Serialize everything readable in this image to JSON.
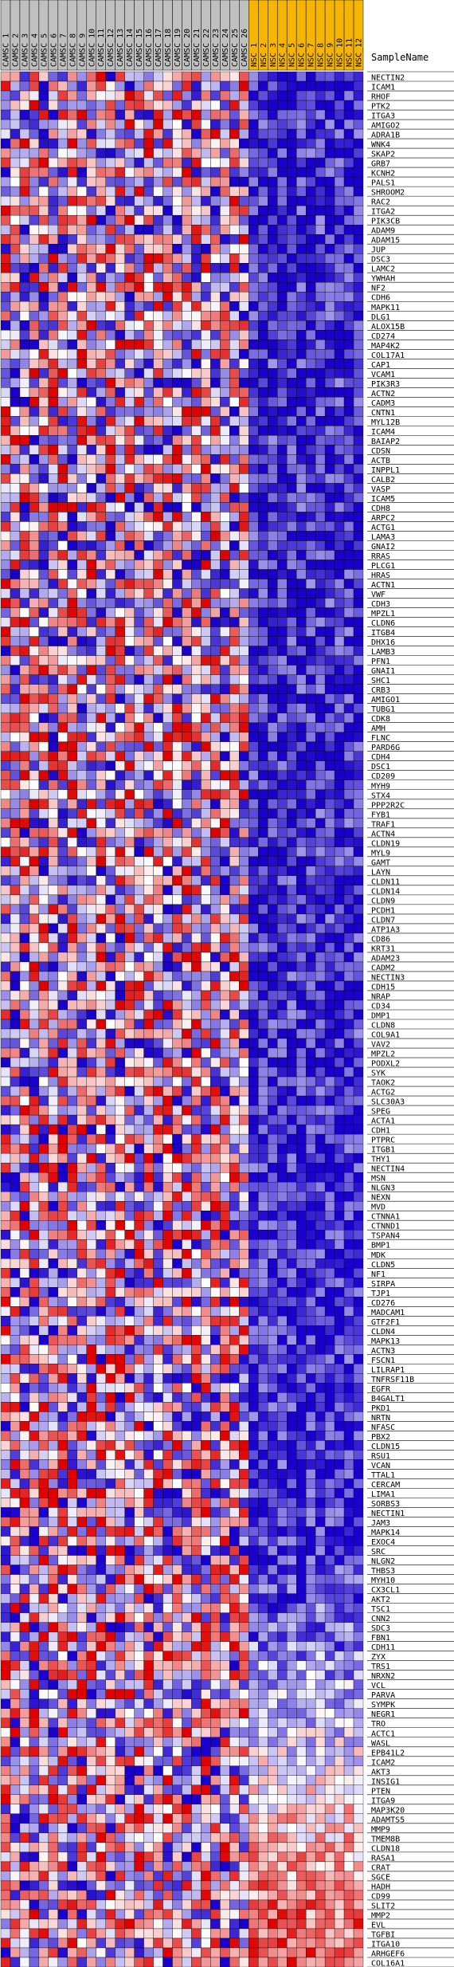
{
  "chart_data": {
    "type": "heatmap",
    "column_header_title": "SampleName",
    "columns": [
      {
        "name": "CAMSC_1",
        "group": "CAMSC"
      },
      {
        "name": "CAMSC_2",
        "group": "CAMSC"
      },
      {
        "name": "CAMSC_3",
        "group": "CAMSC"
      },
      {
        "name": "CAMSC_4",
        "group": "CAMSC"
      },
      {
        "name": "CAMSC_5",
        "group": "CAMSC"
      },
      {
        "name": "CAMSC_6",
        "group": "CAMSC"
      },
      {
        "name": "CAMSC_7",
        "group": "CAMSC"
      },
      {
        "name": "CAMSC_8",
        "group": "CAMSC"
      },
      {
        "name": "CAMSC_9",
        "group": "CAMSC"
      },
      {
        "name": "CAMSC_10",
        "group": "CAMSC"
      },
      {
        "name": "CAMSC_11",
        "group": "CAMSC"
      },
      {
        "name": "CAMSC_12",
        "group": "CAMSC"
      },
      {
        "name": "CAMSC_13",
        "group": "CAMSC"
      },
      {
        "name": "CAMSC_14",
        "group": "CAMSC"
      },
      {
        "name": "CAMSC_15",
        "group": "CAMSC"
      },
      {
        "name": "CAMSC_16",
        "group": "CAMSC"
      },
      {
        "name": "CAMSC_17",
        "group": "CAMSC"
      },
      {
        "name": "CAMSC_18",
        "group": "CAMSC"
      },
      {
        "name": "CAMSC_19",
        "group": "CAMSC"
      },
      {
        "name": "CAMSC_20",
        "group": "CAMSC"
      },
      {
        "name": "CAMSC_21",
        "group": "CAMSC"
      },
      {
        "name": "CAMSC_22",
        "group": "CAMSC"
      },
      {
        "name": "CAMSC_23",
        "group": "CAMSC"
      },
      {
        "name": "CAMSC_24",
        "group": "CAMSC"
      },
      {
        "name": "CAMSC_25",
        "group": "CAMSC"
      },
      {
        "name": "CAMSC_26",
        "group": "CAMSC"
      },
      {
        "name": "NSC_1",
        "group": "NSC"
      },
      {
        "name": "NSC_2",
        "group": "NSC"
      },
      {
        "name": "NSC_3",
        "group": "NSC"
      },
      {
        "name": "NSC_4",
        "group": "NSC"
      },
      {
        "name": "NSC_5",
        "group": "NSC"
      },
      {
        "name": "NSC_6",
        "group": "NSC"
      },
      {
        "name": "NSC_7",
        "group": "NSC"
      },
      {
        "name": "NSC_8",
        "group": "NSC"
      },
      {
        "name": "NSC_9",
        "group": "NSC"
      },
      {
        "name": "NSC_10",
        "group": "NSC"
      },
      {
        "name": "NSC_11",
        "group": "NSC"
      },
      {
        "name": "NSC_12",
        "group": "NSC"
      }
    ],
    "group_colors": {
      "CAMSC": "#c0c0c0",
      "NSC": "#f6b500"
    },
    "rows": [
      "NECTIN2",
      "ICAM1",
      "RHOF",
      "PTK2",
      "ITGA3",
      "AMIGO2",
      "ADRA1B",
      "WNK4",
      "SKAP2",
      "GRB7",
      "KCNH2",
      "PALS1",
      "SHROOM2",
      "RAC2",
      "ITGA2",
      "PIK3CB",
      "ADAM9",
      "ADAM15",
      "JUP",
      "DSC3",
      "LAMC2",
      "YWHAH",
      "NF2",
      "CDH6",
      "MAPK11",
      "DLG1",
      "ALOX15B",
      "CD274",
      "MAP4K2",
      "COL17A1",
      "CAP1",
      "VCAM1",
      "PIK3R3",
      "ACTN2",
      "CADM3",
      "CNTN1",
      "MYL12B",
      "ICAM4",
      "BAIAP2",
      "CDSN",
      "ACTB",
      "INPPL1",
      "CALB2",
      "VASP",
      "ICAM5",
      "CDH8",
      "ARPC2",
      "ACTG1",
      "LAMA3",
      "GNAI2",
      "RRAS",
      "PLCG1",
      "HRAS",
      "ACTN1",
      "VWF",
      "CDH3",
      "MPZL1",
      "CLDN6",
      "ITGB4",
      "DHX16",
      "LAMB3",
      "PFN1",
      "GNAI1",
      "SHC1",
      "CRB3",
      "AMIGO1",
      "TUBG1",
      "CDK8",
      "AMH",
      "FLNC",
      "PARD6G",
      "CDH4",
      "DSC1",
      "CD209",
      "MYH9",
      "STX4",
      "PPP2R2C",
      "FYB1",
      "TRAF1",
      "ACTN4",
      "CLDN19",
      "MYL9",
      "GAMT",
      "LAYN",
      "CLDN11",
      "CLDN14",
      "CLDN9",
      "PCDH1",
      "CLDN7",
      "ATP1A3",
      "CD86",
      "KRT31",
      "ADAM23",
      "CADM2",
      "NECTIN3",
      "CDH15",
      "NRAP",
      "CD34",
      "DMP1",
      "CLDN8",
      "COL9A1",
      "VAV2",
      "MPZL2",
      "PODXL2",
      "SYK",
      "TAOK2",
      "ACTG2",
      "SLC30A3",
      "SPEG",
      "ACTA1",
      "CDH1",
      "PTPRC",
      "ITGB1",
      "THY1",
      "NECTIN4",
      "MSN",
      "NLGN3",
      "NEXN",
      "MVD",
      "CTNNA1",
      "CTNND1",
      "TSPAN4",
      "BMP1",
      "MDK",
      "CLDN5",
      "NF1",
      "SIRPA",
      "TJP1",
      "CD276",
      "MADCAM1",
      "GTF2F1",
      "CLDN4",
      "MAPK13",
      "ACTN3",
      "FSCN1",
      "LILRAP1",
      "TNFRSF11B",
      "EGFR",
      "B4GALT1",
      "PKD1",
      "NRTN",
      "NFASC",
      "PBX2",
      "CLDN15",
      "RSU1",
      "VCAN",
      "TTAL1",
      "CERCAM",
      "LIMA1",
      "SORBS3",
      "NECTIN1",
      "JAM3",
      "MAPK14",
      "EXOC4",
      "SRC",
      "NLGN2",
      "THBS3",
      "MYH10",
      "CX3CL1",
      "AKT2",
      "TSC1",
      "CNN2",
      "SDC3",
      "FBN1",
      "CDH11",
      "ZYX",
      "TRS1",
      "NRXN2",
      "VCL",
      "PARVA",
      "SYMPK",
      "NEGR1",
      "TRO",
      "ACTC1",
      "WASL",
      "EPB41L2",
      "ICAM2",
      "AKT3",
      "INSIG1",
      "PTEN",
      "ITGA9",
      "MAP3K20",
      "ADAMTS5",
      "MMP9",
      "TMEM8B",
      "CLDN18",
      "RASA1",
      "CRAT",
      "SGCE",
      "HADH",
      "CD99",
      "SLIT2",
      "MMP2",
      "EVL",
      "TGFBI",
      "ITGA10",
      "ARHGEF6",
      "COL16A1"
    ],
    "value_range": [
      -1,
      1
    ],
    "color_scale": {
      "low": "#1a00cc",
      "mid": "#ffffff",
      "high": "#e00000"
    },
    "values_seed": 20240917
  }
}
